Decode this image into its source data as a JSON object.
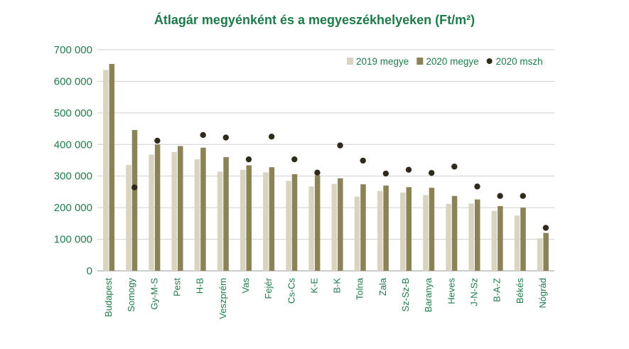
{
  "chart_data": {
    "type": "bar",
    "title": "Átlagár megyénként és a megyeszékhelyeken (Ft/m²)",
    "xlabel": "",
    "ylabel": "",
    "ylim": [
      0,
      700000
    ],
    "yticks": [
      0,
      100000,
      200000,
      300000,
      400000,
      500000,
      600000,
      700000
    ],
    "ytick_labels": [
      "0",
      "100 000",
      "200 000",
      "300 000",
      "400 000",
      "500 000",
      "600 000",
      "700 000"
    ],
    "grid": true,
    "legend_position": "top-right",
    "categories": [
      "Budapest",
      "Somogy",
      "Gy-M-S",
      "Pest",
      "H-B",
      "Veszprém",
      "Vas",
      "Fejér",
      "Cs-Cs",
      "K-E",
      "B-K",
      "Tolna",
      "Zala",
      "Sz-Sz-B",
      "Baranya",
      "Heves",
      "J-N-Sz",
      "B-A-Z",
      "Békés",
      "Nógrád"
    ],
    "series": [
      {
        "name": "2019 megye",
        "kind": "bar",
        "color": "#d8d4c0",
        "values": [
          636000,
          335000,
          368000,
          376000,
          353000,
          314000,
          320000,
          312000,
          285000,
          267000,
          275000,
          235000,
          253000,
          248000,
          240000,
          212000,
          213000,
          190000,
          175000,
          103000
        ]
      },
      {
        "name": "2020 megye",
        "kind": "bar",
        "color": "#8b8257",
        "values": [
          655000,
          446000,
          400000,
          395000,
          390000,
          360000,
          334000,
          328000,
          306000,
          303000,
          293000,
          274000,
          270000,
          265000,
          263000,
          237000,
          226000,
          205000,
          200000,
          120000
        ]
      },
      {
        "name": "2020 mszh",
        "kind": "point",
        "color": "#2f2a1c",
        "values": [
          null,
          264000,
          412000,
          null,
          430000,
          422000,
          353000,
          425000,
          353000,
          311000,
          397000,
          349000,
          308000,
          320000,
          310000,
          330000,
          267000,
          237000,
          237000,
          136000
        ]
      }
    ]
  }
}
